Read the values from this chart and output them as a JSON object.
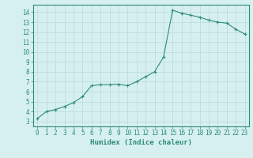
{
  "x": [
    0,
    1,
    2,
    3,
    4,
    5,
    6,
    7,
    8,
    9,
    10,
    11,
    12,
    13,
    14,
    15,
    16,
    17,
    18,
    19,
    20,
    21,
    22,
    23
  ],
  "y": [
    3.3,
    4.0,
    4.2,
    4.5,
    4.9,
    5.5,
    6.6,
    6.7,
    6.7,
    6.75,
    6.6,
    7.0,
    7.5,
    8.0,
    9.5,
    14.2,
    13.9,
    13.7,
    13.5,
    13.2,
    13.0,
    12.9,
    12.3,
    11.8
  ],
  "line_color": "#2e8b7a",
  "marker": "+",
  "marker_size": 3,
  "bg_color": "#d6f0ef",
  "grid_color": "#b8dbd8",
  "xlabel": "Humidex (Indice chaleur)",
  "xlim": [
    -0.5,
    23.5
  ],
  "ylim": [
    2.5,
    14.75
  ],
  "yticks": [
    3,
    4,
    5,
    6,
    7,
    8,
    9,
    10,
    11,
    12,
    13,
    14
  ],
  "xticks": [
    0,
    1,
    2,
    3,
    4,
    5,
    6,
    7,
    8,
    9,
    10,
    11,
    12,
    13,
    14,
    15,
    16,
    17,
    18,
    19,
    20,
    21,
    22,
    23
  ],
  "axis_color": "#2e8b7a",
  "tick_color": "#2e8b7a",
  "label_fontsize": 6.5,
  "tick_fontsize": 5.5,
  "linewidth": 0.8,
  "markeredgewidth": 0.8
}
